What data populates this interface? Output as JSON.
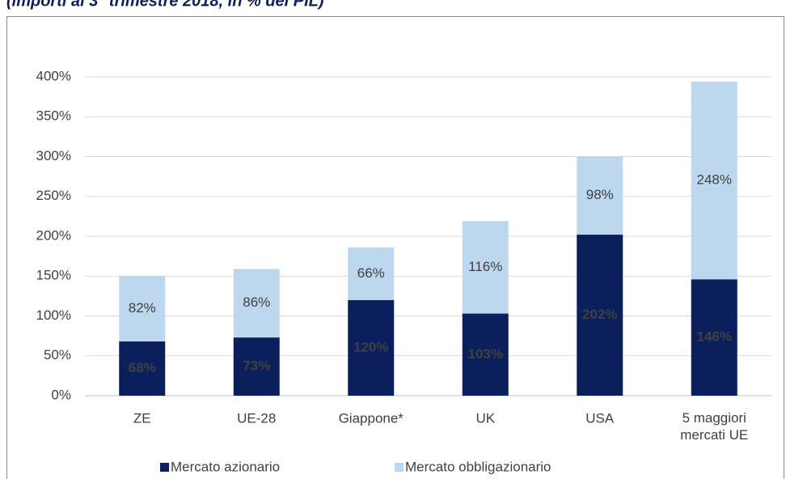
{
  "chart_data": {
    "type": "stacked-bar",
    "subtitle": "(importi al 3° trimestre 2018, in % del PIL)",
    "categories": [
      "ZE",
      "UE-28",
      "Giappone*",
      "UK",
      "USA",
      "5 maggiori mercati UE"
    ],
    "series": [
      {
        "name": "Mercato azionario",
        "color": "#0b1f5c",
        "label_color": "#9dc3e6",
        "values": [
          68,
          73,
          120,
          103,
          202,
          146
        ],
        "value_labels": [
          "68%",
          "73%",
          "120%",
          "103%",
          "202%",
          "146%"
        ]
      },
      {
        "name": "Mercato obbligazionario",
        "color": "#bdd7ee",
        "label_color": "#404040",
        "values": [
          82,
          86,
          66,
          116,
          98,
          248
        ],
        "value_labels": [
          "82%",
          "86%",
          "66%",
          "116%",
          "98%",
          "248%"
        ]
      }
    ],
    "ylim": [
      0,
      400
    ],
    "yticks": [
      {
        "value": 0,
        "label": "0%"
      },
      {
        "value": 50,
        "label": "50%"
      },
      {
        "value": 100,
        "label": "100%"
      },
      {
        "value": 150,
        "label": "150%"
      },
      {
        "value": 200,
        "label": "200%"
      },
      {
        "value": 250,
        "label": "250%"
      },
      {
        "value": 300,
        "label": "300%"
      },
      {
        "value": 350,
        "label": "350%"
      },
      {
        "value": 400,
        "label": "400%"
      }
    ],
    "grid": true,
    "legend": "bottom"
  }
}
